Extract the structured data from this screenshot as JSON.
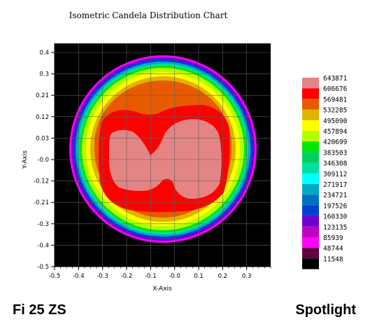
{
  "chart_data": {
    "type": "heatmap",
    "title": "Isometric Candela Distribution Chart",
    "xlabel": "X-Axis",
    "ylabel": "Y-Axis",
    "xlim": [
      -0.5,
      0.4
    ],
    "ylim": [
      -0.5,
      0.45
    ],
    "x_ticks": [
      -0.5,
      -0.4,
      -0.3,
      -0.2,
      -0.1,
      0.0,
      0.1,
      0.2,
      0.3
    ],
    "y_ticks": [
      0.4,
      0.3,
      0.21,
      0.12,
      0.03,
      -0.0,
      -0.12,
      -0.21,
      -0.3,
      -0.4,
      -0.5
    ],
    "x_tick_labels": [
      "-0.5",
      "-0.4",
      "-0.3",
      "-0.2",
      "-0.1",
      "-0.0",
      "0.1",
      "0.2",
      "0.3"
    ],
    "y_tick_labels": [
      "0.4",
      "0.3",
      "0.21",
      "0.12",
      "0.03",
      "-0.0",
      "-0.12",
      "-0.21",
      "-0.3",
      "-0.4",
      "-0.5"
    ],
    "grid": true,
    "legend_position": "right",
    "legend": [
      {
        "value": "643871",
        "color": "#e48484"
      },
      {
        "value": "606676",
        "color": "#ff0000"
      },
      {
        "value": "569481",
        "color": "#e85a00"
      },
      {
        "value": "532285",
        "color": "#e0b400"
      },
      {
        "value": "495090",
        "color": "#ffff00"
      },
      {
        "value": "457894",
        "color": "#b4ff00"
      },
      {
        "value": "420699",
        "color": "#00e800"
      },
      {
        "value": "383503",
        "color": "#00d060"
      },
      {
        "value": "346308",
        "color": "#00e0a0"
      },
      {
        "value": "309112",
        "color": "#00ffff"
      },
      {
        "value": "271917",
        "color": "#00a8c8"
      },
      {
        "value": "234721",
        "color": "#0070c0"
      },
      {
        "value": "197526",
        "color": "#0040d0"
      },
      {
        "value": "160330",
        "color": "#7000d0"
      },
      {
        "value": "123135",
        "color": "#c000c0"
      },
      {
        "value": "85939",
        "color": "#ff00ff"
      },
      {
        "value": "48744",
        "color": "#600040"
      },
      {
        "value": "11548",
        "color": "#000000"
      }
    ],
    "background_color": "#000000",
    "ring_colors": [
      "#ff00ff",
      "#7000d0",
      "#0040d0",
      "#00a8c8",
      "#00e0a0",
      "#00e800",
      "#b4ff00",
      "#ffff00",
      "#e0b400",
      "#e85a00"
    ],
    "grid_color": "#606060"
  },
  "footer": {
    "left": "Fi 25 ZS",
    "right": "Spotlight"
  }
}
